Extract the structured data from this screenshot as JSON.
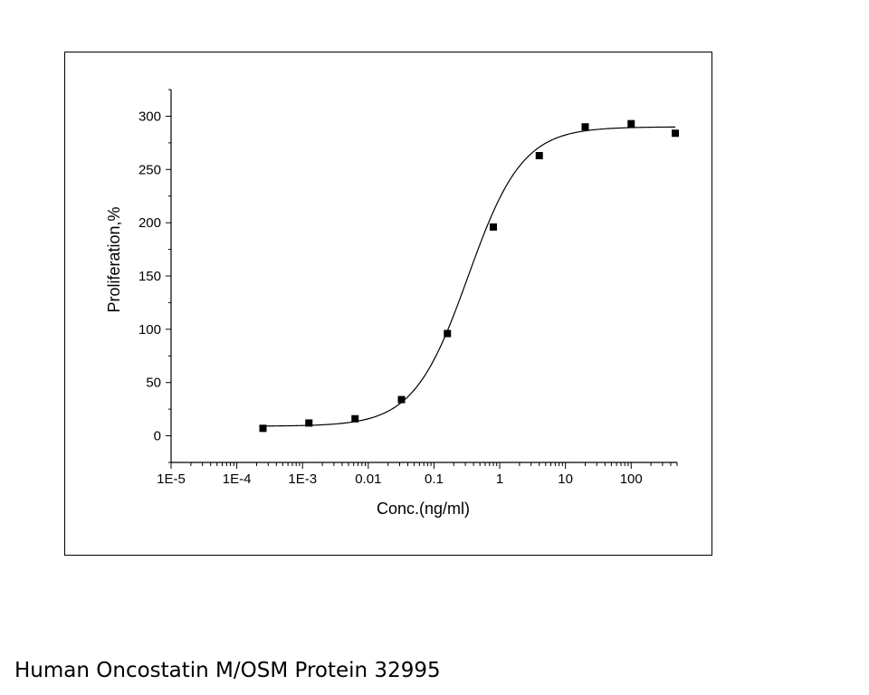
{
  "chart_data": {
    "type": "scatter",
    "xscale": "log",
    "xlabel": "Conc.(ng/ml)",
    "ylabel": "Proliferation,%",
    "xlim": [
      1e-05,
      500
    ],
    "ylim": [
      -25,
      325
    ],
    "xticks": [
      {
        "value": 1e-05,
        "label": "1E-5"
      },
      {
        "value": 0.0001,
        "label": "1E-4"
      },
      {
        "value": 0.001,
        "label": "1E-3"
      },
      {
        "value": 0.01,
        "label": "0.01"
      },
      {
        "value": 0.1,
        "label": "0.1"
      },
      {
        "value": 1,
        "label": "1"
      },
      {
        "value": 10,
        "label": "10"
      },
      {
        "value": 100,
        "label": "100"
      }
    ],
    "yticks": [
      {
        "value": 0,
        "label": "0"
      },
      {
        "value": 50,
        "label": "50"
      },
      {
        "value": 100,
        "label": "100"
      },
      {
        "value": 150,
        "label": "150"
      },
      {
        "value": 200,
        "label": "200"
      },
      {
        "value": 250,
        "label": "250"
      },
      {
        "value": 300,
        "label": "300"
      }
    ],
    "points": [
      {
        "x": 0.00025,
        "y": 7
      },
      {
        "x": 0.00125,
        "y": 12
      },
      {
        "x": 0.0063,
        "y": 16
      },
      {
        "x": 0.032,
        "y": 34
      },
      {
        "x": 0.16,
        "y": 96
      },
      {
        "x": 0.8,
        "y": 196
      },
      {
        "x": 4,
        "y": 263
      },
      {
        "x": 20,
        "y": 290
      },
      {
        "x": 100,
        "y": 293
      },
      {
        "x": 470,
        "y": 284
      }
    ],
    "fit": {
      "model": "4PL",
      "bottom": 9,
      "top": 290,
      "ec50": 0.33,
      "hill": 1.05,
      "xrange": [
        0.00025,
        470
      ]
    }
  },
  "caption": "Human Oncostatin M/OSM Protein 32995"
}
